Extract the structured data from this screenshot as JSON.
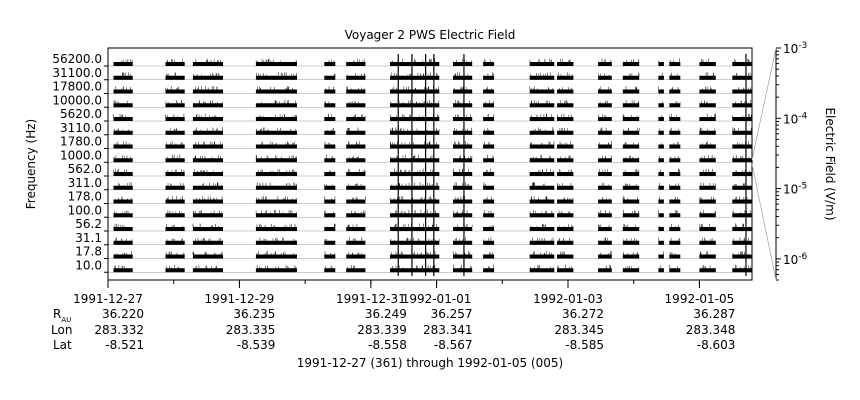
{
  "chart_data": {
    "type": "heatmap",
    "title": "Voyager 2 PWS Electric Field",
    "ylabel": "Frequency (Hz)",
    "colorbar_label": "Electric Field (V/m)",
    "footer": "1991-12-27 (361) through 1992-01-05 (005)",
    "frequency_channels": [
      "10.0",
      "17.8",
      "31.1",
      "56.2",
      "100.0",
      "178.0",
      "311.0",
      "562.0",
      "1000.0",
      "1780.0",
      "3110.0",
      "5620.0",
      "10000.0",
      "17800.0",
      "31100.0",
      "56200.0"
    ],
    "y_tick_labels": [
      "10.0",
      "17.8",
      "31.1",
      "56.2",
      "100.0",
      "178.0",
      "311.0",
      "562.0",
      "1000.0",
      "1780.0",
      "3110.0",
      "5620.0",
      "10000.0",
      "17800.0",
      "31100.0",
      "56200.0"
    ],
    "colorbar_ticks": [
      {
        "mantissa": "10",
        "exponent": "-3",
        "value": 0.001
      },
      {
        "mantissa": "10",
        "exponent": "-4",
        "value": 0.0001
      },
      {
        "mantissa": "10",
        "exponent": "-5",
        "value": 1e-05
      },
      {
        "mantissa": "10",
        "exponent": "-6",
        "value": 1e-06
      }
    ],
    "colorbar_range": [
      5e-07,
      0.001
    ],
    "colorbar_scale": "log",
    "x_range": [
      "1991-12-27T00:00",
      "1992-01-05T19:12"
    ],
    "x_ticks": [
      {
        "date": "1991-12-27",
        "R": "36.220",
        "Lon": "283.332",
        "Lat": "-8.521"
      },
      {
        "date": "1991-12-29",
        "R": "36.235",
        "Lon": "283.335",
        "Lat": "-8.539"
      },
      {
        "date": "1991-12-31",
        "R": "36.249",
        "Lon": "283.339",
        "Lat": "-8.558"
      },
      {
        "date": "1992-01-01",
        "R": "36.257",
        "Lon": "283.341",
        "Lat": "-8.567"
      },
      {
        "date": "1992-01-03",
        "R": "36.272",
        "Lon": "283.345",
        "Lat": "-8.585"
      },
      {
        "date": "1992-01-05",
        "R": "36.287",
        "Lon": "283.348",
        "Lat": "-8.603"
      }
    ],
    "ephemeris_labels": {
      "r": "R",
      "r_sub": "AU",
      "lon": "Lon",
      "lat": "Lat"
    },
    "data_segments": [
      {
        "start": "1991-12-27T02:00",
        "end": "1991-12-27T09:00"
      },
      {
        "start": "1991-12-27T21:00",
        "end": "1991-12-28T04:00"
      },
      {
        "start": "1991-12-28T07:00",
        "end": "1991-12-28T18:00"
      },
      {
        "start": "1991-12-29T06:00",
        "end": "1991-12-29T21:00"
      },
      {
        "start": "1991-12-30T07:00",
        "end": "1991-12-30T11:00"
      },
      {
        "start": "1991-12-30T15:00",
        "end": "1991-12-30T22:00"
      },
      {
        "start": "1991-12-31T07:00",
        "end": "1992-01-01T01:00"
      },
      {
        "start": "1992-01-01T06:00",
        "end": "1992-01-01T13:00"
      },
      {
        "start": "1992-01-01T17:00",
        "end": "1992-01-01T21:00"
      },
      {
        "start": "1992-01-02T10:00",
        "end": "1992-01-02T19:00"
      },
      {
        "start": "1992-01-02T20:00",
        "end": "1992-01-03T02:00"
      },
      {
        "start": "1992-01-03T11:00",
        "end": "1992-01-03T16:00"
      },
      {
        "start": "1992-01-03T20:00",
        "end": "1992-01-04T02:00"
      },
      {
        "start": "1992-01-04T09:00",
        "end": "1992-01-04T11:00"
      },
      {
        "start": "1992-01-04T13:00",
        "end": "1992-01-04T17:00"
      },
      {
        "start": "1992-01-05T00:00",
        "end": "1992-01-05T06:00"
      },
      {
        "start": "1992-01-05T12:00",
        "end": "1992-01-05T19:00"
      }
    ],
    "burst_times": [
      "1991-12-31T10:00",
      "1991-12-31T15:00",
      "1991-12-31T20:00",
      "1991-12-31T23:00",
      "1992-01-01T10:00",
      "1992-01-05T17:00"
    ],
    "grid": true
  }
}
